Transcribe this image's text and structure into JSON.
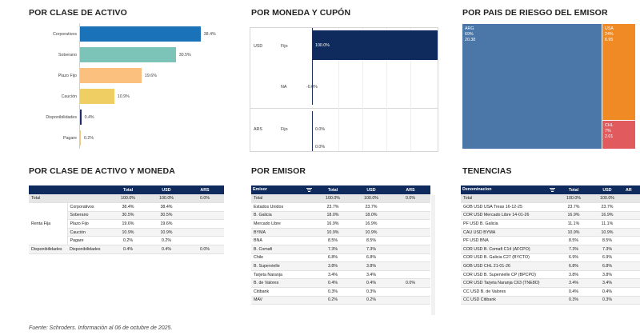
{
  "sections": {
    "por_clase": "POR CLASE DE ACTIVO",
    "por_moneda": "POR MONEDA Y CUPÓN",
    "por_pais": "POR PAIS DE RIESGO DEL EMISOR",
    "clase_moneda": "POR CLASE DE ACTIVO Y MONEDA",
    "por_emisor": "POR EMISOR",
    "tenencias": "TENENCIAS"
  },
  "chart_data": [
    {
      "type": "bar",
      "orientation": "horizontal",
      "title": "POR CLASE DE ACTIVO",
      "categories": [
        "Corporativos",
        "Soberano",
        "Plazo Fijo",
        "Caución",
        "Disponibilidades",
        "Pagare"
      ],
      "values": [
        38.4,
        30.5,
        19.6,
        10.9,
        0.4,
        0.2
      ],
      "labels": [
        "38.4%",
        "30.5%",
        "19.6%",
        "10.9%",
        "0.4%",
        "0.2%"
      ],
      "colors": [
        "#1a73b8",
        "#7cc4b8",
        "#fbbf7e",
        "#efcf64",
        "#1f2a6b",
        "#e9c98a"
      ],
      "xlim": [
        0,
        40
      ]
    },
    {
      "type": "bar",
      "orientation": "horizontal",
      "title": "POR MONEDA Y CUPÓN",
      "groups": [
        "USD",
        "ARS"
      ],
      "categories": [
        "Fijo",
        "NA",
        "Fijo"
      ],
      "group_of": [
        "USD",
        "USD",
        "ARS"
      ],
      "values": [
        100.0,
        0.0,
        0.0
      ],
      "labels": [
        "100.0%",
        "-0.0%",
        "0.0%"
      ],
      "extra_label": "0.0%",
      "color": "#0f2a5c",
      "xlim": [
        0,
        100
      ]
    },
    {
      "type": "heatmap",
      "subtype": "treemap",
      "title": "POR PAIS DE RIESGO DEL EMISOR",
      "items": [
        {
          "name": "ARG",
          "pct": 69,
          "value": 20.38,
          "pct_label": "69%",
          "value_label": "20.38",
          "color": "#4a77a8"
        },
        {
          "name": "USA",
          "pct": 24,
          "value": 6.95,
          "pct_label": "24%",
          "value_label": "6.95",
          "color": "#f08a24"
        },
        {
          "name": "CHL",
          "pct": 7,
          "value": 2.01,
          "pct_label": "7%",
          "value_label": "2.01",
          "color": "#e05a5e"
        }
      ]
    }
  ],
  "table_clase": {
    "headers": [
      "",
      "",
      "Total",
      "USD",
      "ARS"
    ],
    "total": {
      "label": "Total",
      "total": "100.0%",
      "usd": "100.0%",
      "ars": "0.0%"
    },
    "group_renta": "Renta Fija",
    "rows": [
      {
        "sub": "Corporativos",
        "total": "38.4%",
        "usd": "38.4%",
        "ars": ""
      },
      {
        "sub": "Soberano",
        "total": "30.5%",
        "usd": "30.5%",
        "ars": ""
      },
      {
        "sub": "Plazo Fijo",
        "total": "19.6%",
        "usd": "19.6%",
        "ars": ""
      },
      {
        "sub": "Caución",
        "total": "10.9%",
        "usd": "10.9%",
        "ars": ""
      },
      {
        "sub": "Pagare",
        "total": "0.2%",
        "usd": "0.2%",
        "ars": ""
      }
    ],
    "disp": {
      "group": "Disponibilidades",
      "sub": "Disponibilidades",
      "total": "0.4%",
      "usd": "0.4%",
      "ars": "0.0%"
    }
  },
  "table_emisor": {
    "headers": [
      "Emisor",
      "Total",
      "USD",
      "ARS"
    ],
    "rows": [
      {
        "name": "Total",
        "total": "100.0%",
        "usd": "100.0%",
        "ars": "0.0%"
      },
      {
        "name": "Estados Unidos",
        "total": "23.7%",
        "usd": "23.7%",
        "ars": ""
      },
      {
        "name": "B. Galicia",
        "total": "18.0%",
        "usd": "18.0%",
        "ars": ""
      },
      {
        "name": "Mercado Libre",
        "total": "16.9%",
        "usd": "16.9%",
        "ars": ""
      },
      {
        "name": "BYMA",
        "total": "10.9%",
        "usd": "10.9%",
        "ars": ""
      },
      {
        "name": "BNA",
        "total": "8.5%",
        "usd": "8.5%",
        "ars": ""
      },
      {
        "name": "B. Comafi",
        "total": "7.3%",
        "usd": "7.3%",
        "ars": ""
      },
      {
        "name": "Chile",
        "total": "6.8%",
        "usd": "6.8%",
        "ars": ""
      },
      {
        "name": "B. Supervielle",
        "total": "3.8%",
        "usd": "3.8%",
        "ars": ""
      },
      {
        "name": "Tarjeta Naranja",
        "total": "3.4%",
        "usd": "3.4%",
        "ars": ""
      },
      {
        "name": "B. de Valores",
        "total": "0.4%",
        "usd": "0.4%",
        "ars": "0.0%"
      },
      {
        "name": "Citibank",
        "total": "0.3%",
        "usd": "0.3%",
        "ars": ""
      },
      {
        "name": "MAV",
        "total": "0.2%",
        "usd": "0.2%",
        "ars": ""
      }
    ]
  },
  "table_tenencias": {
    "headers": [
      "Denominacion",
      "Total",
      "USD",
      "AR"
    ],
    "rows": [
      {
        "name": "Total",
        "total": "100.0%",
        "usd": "100.0%"
      },
      {
        "name": "GOB USD USA Treas 16-12-25",
        "total": "23.7%",
        "usd": "23.7%"
      },
      {
        "name": "COR USD Mercado Libre 14-01-26",
        "total": "16.9%",
        "usd": "16.9%"
      },
      {
        "name": "PF USD B. Galicia",
        "total": "11.1%",
        "usd": "11.1%"
      },
      {
        "name": "CAU USD BYMA",
        "total": "10.9%",
        "usd": "10.9%"
      },
      {
        "name": "PF USD BNA",
        "total": "8.5%",
        "usd": "8.5%"
      },
      {
        "name": "COR USD B. Comafi C14 (AFCPO)",
        "total": "7.3%",
        "usd": "7.3%"
      },
      {
        "name": "COR USD B. Galicia C27 (BYCTO)",
        "total": "6.9%",
        "usd": "6.9%"
      },
      {
        "name": "GOB USD CHL 21-01-26",
        "total": "6.8%",
        "usd": "6.8%"
      },
      {
        "name": "COR USD B. Supervielle CP (BPCPO)",
        "total": "3.8%",
        "usd": "3.8%"
      },
      {
        "name": "COR USD Tarjeta Naranja C63 (TNE8O)",
        "total": "3.4%",
        "usd": "3.4%"
      },
      {
        "name": "CC USD B. de Valores",
        "total": "0.4%",
        "usd": "0.4%"
      },
      {
        "name": "CC USD Citibank",
        "total": "0.3%",
        "usd": "0.3%"
      }
    ]
  },
  "footer": "Fuente: Schroders. Información al 06 de octubre de 2025."
}
